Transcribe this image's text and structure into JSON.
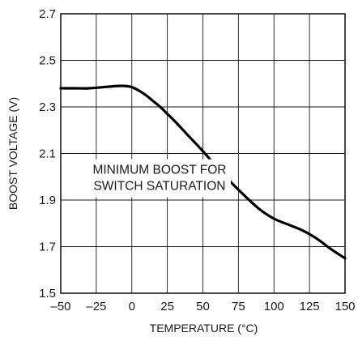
{
  "chart_data": {
    "type": "line",
    "xlabel": "TEMPERATURE (°C)",
    "ylabel": "BOOST VOLTAGE (V)",
    "xlim": [
      -50,
      150
    ],
    "ylim": [
      1.5,
      2.7
    ],
    "x_ticks": [
      -50,
      -25,
      0,
      25,
      50,
      75,
      100,
      125,
      150
    ],
    "x_tick_labels": [
      "–50",
      "–25",
      "0",
      "25",
      "50",
      "75",
      "100",
      "125",
      "150"
    ],
    "y_ticks": [
      1.5,
      1.7,
      1.9,
      2.1,
      2.3,
      2.5,
      2.7
    ],
    "y_tick_labels": [
      "1.5",
      "1.7",
      "1.9",
      "2.1",
      "2.3",
      "2.5",
      "2.7"
    ],
    "x_grid_step": 25,
    "y_grid_step": 0.2,
    "grid": true,
    "annotation": {
      "lines": [
        "MINIMUM BOOST FOR",
        "SWITCH SATURATION"
      ],
      "anchor_x": 19.5,
      "anchor_y": 2.03
    },
    "series": [
      {
        "color": "#000000",
        "x": [
          -50,
          -40,
          -30,
          -20,
          -10,
          -5,
          0,
          5,
          10,
          15,
          20,
          25,
          30,
          40,
          50,
          60,
          70,
          80,
          90,
          100,
          110,
          120,
          130,
          140,
          150
        ],
        "y": [
          2.38,
          2.38,
          2.38,
          2.385,
          2.39,
          2.39,
          2.385,
          2.37,
          2.35,
          2.325,
          2.3,
          2.27,
          2.24,
          2.175,
          2.11,
          2.04,
          1.975,
          1.915,
          1.86,
          1.82,
          1.795,
          1.77,
          1.735,
          1.69,
          1.65
        ]
      }
    ]
  }
}
